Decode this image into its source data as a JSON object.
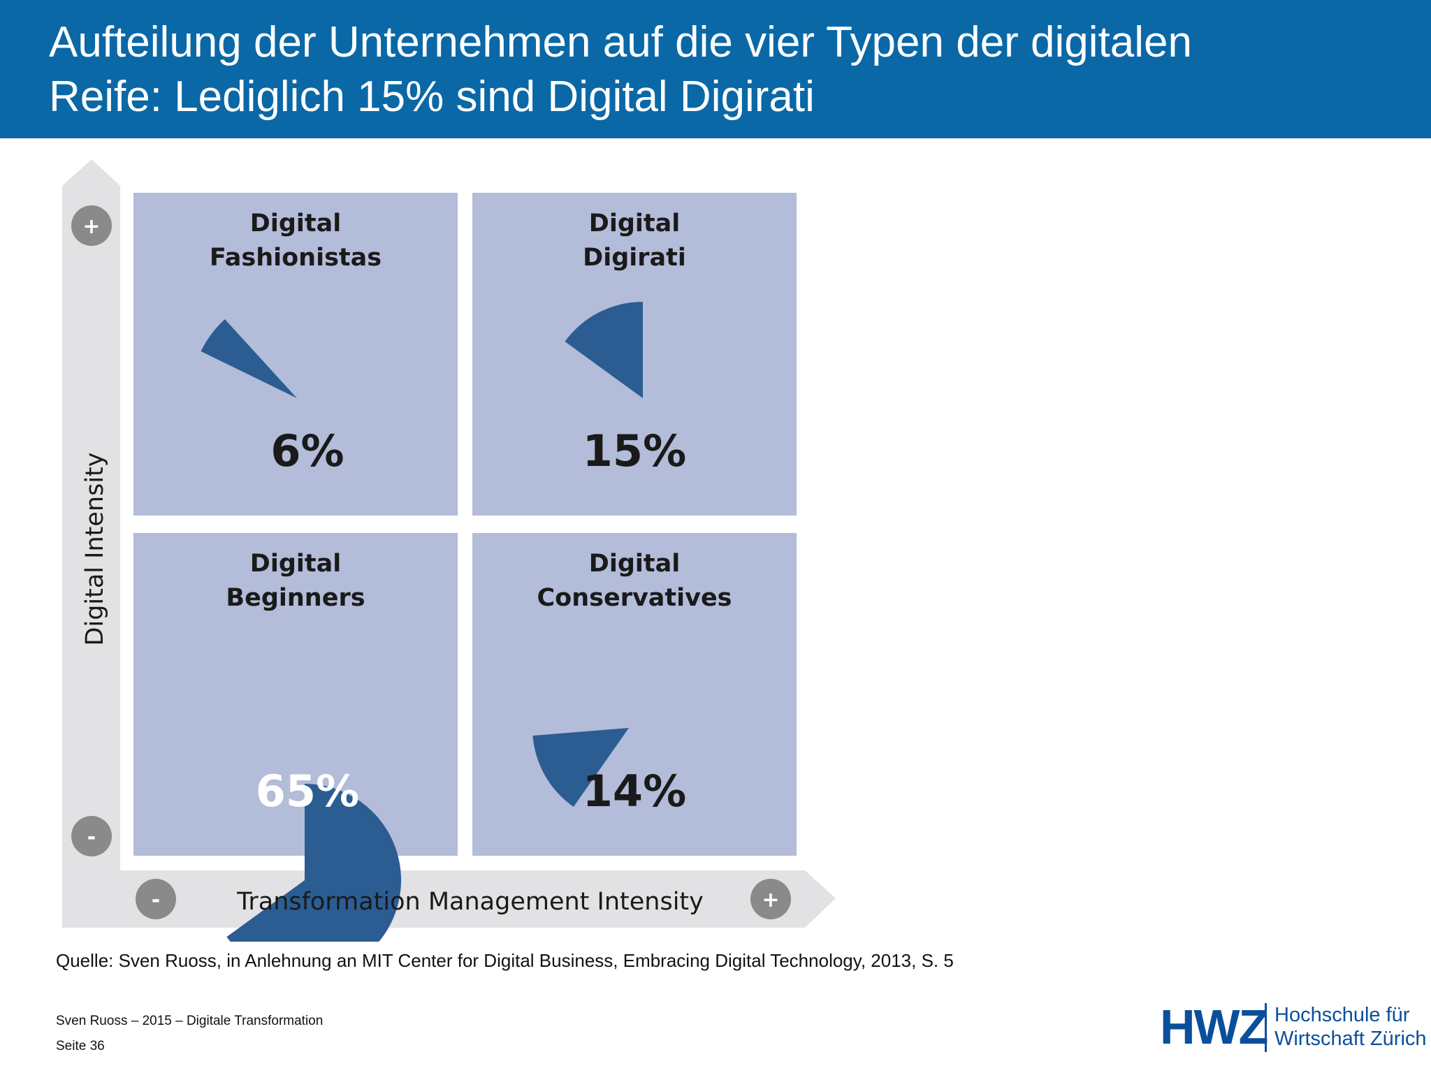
{
  "header": {
    "title_line1": "Aufteilung der Unternehmen auf die vier Typen der digitalen",
    "title_line2": "Reife: Lediglich 15% sind Digital Digirati"
  },
  "chart_data": {
    "type": "pie",
    "layout": "2x2 quadrant matrix",
    "xlabel": "Transformation Management Intensity",
    "ylabel": "Digital Intensity",
    "x_axis_ends": [
      "-",
      "+"
    ],
    "y_axis_ends": [
      "-",
      "+"
    ],
    "quadrants": [
      {
        "name_line1": "Digital",
        "name_line2": "Fashionistas",
        "value": 6,
        "label": "6%",
        "position": "top-left"
      },
      {
        "name_line1": "Digital",
        "name_line2": "Digirati",
        "value": 15,
        "label": "15%",
        "position": "top-right"
      },
      {
        "name_line1": "Digital",
        "name_line2": "Beginners",
        "value": 65,
        "label": "65%",
        "position": "bottom-left"
      },
      {
        "name_line1": "Digital",
        "name_line2": "Conservatives",
        "value": 14,
        "label": "14%",
        "position": "bottom-right"
      }
    ],
    "colors": {
      "quadrant": "#b3bcd9",
      "slice": "#2b5d93",
      "axis": "#e2e2e5",
      "sign_circle": "#8a8a8a"
    }
  },
  "source": "Quelle: Sven Ruoss, in Anlehnung an MIT Center for Digital Business, Embracing Digital Technology, 2013, S. 5",
  "footer": {
    "line1": "Sven Ruoss – 2015 – Digitale Transformation",
    "line2": "Seite 36"
  },
  "logo": {
    "mark": "HWZ",
    "line1": "Hochschule für",
    "line2": "Wirtschaft Zürich"
  }
}
